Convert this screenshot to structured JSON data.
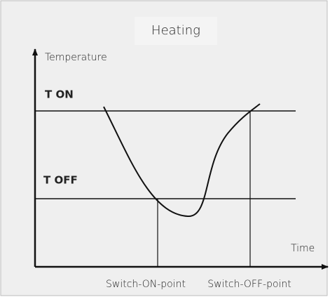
{
  "title": "Heating",
  "y_axis_label": "Temperature",
  "levels": {
    "on": "T ON",
    "off": "T OFF"
  },
  "x_axis_label": "Time",
  "points": {
    "switch_on": "Switch-ON-point",
    "switch_off": "Switch-OFF-point"
  }
}
